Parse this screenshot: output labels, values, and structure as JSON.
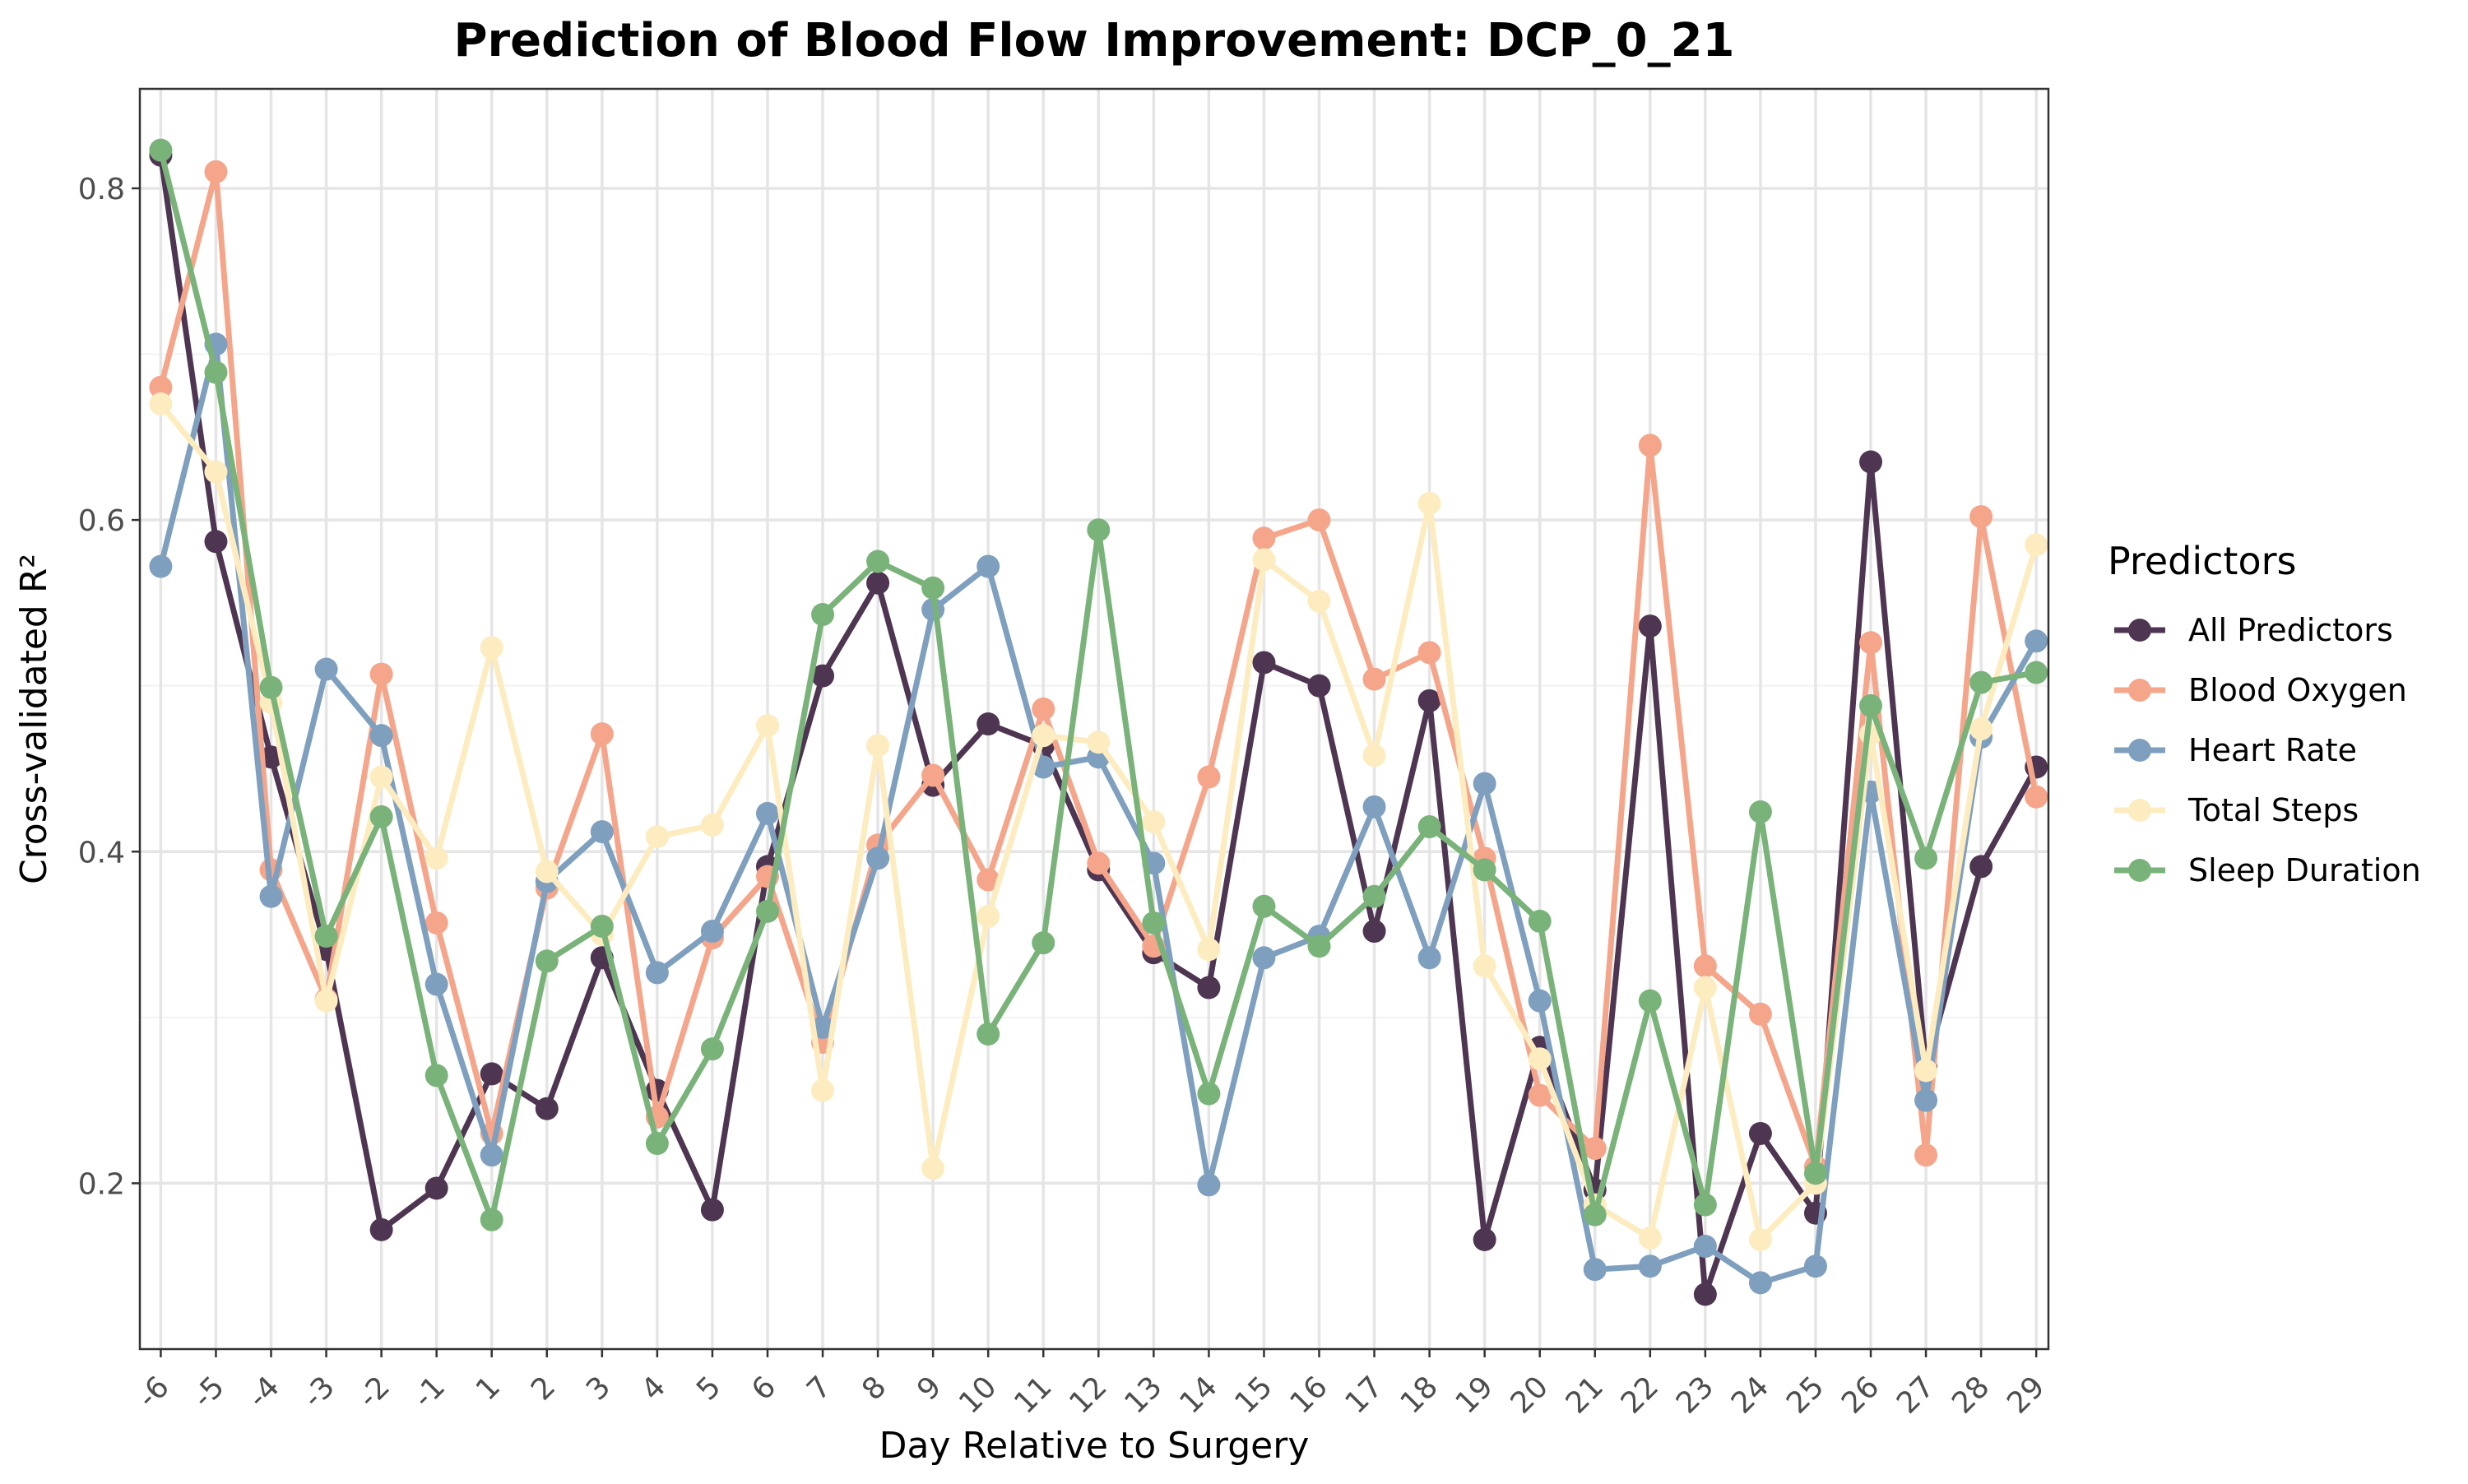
{
  "chart_data": {
    "type": "line",
    "title": "Prediction of Blood Flow Improvement: DCP_0_21",
    "xlabel": "Day Relative to Surgery",
    "ylabel": "Cross-validated R²",
    "x": [
      -6,
      -5,
      -4,
      -3,
      -2,
      -1,
      1,
      2,
      3,
      4,
      5,
      6,
      7,
      8,
      9,
      10,
      11,
      12,
      13,
      14,
      15,
      16,
      17,
      18,
      19,
      20,
      21,
      22,
      23,
      24,
      25,
      26,
      27,
      28,
      29
    ],
    "x_tick_labels": [
      "-6",
      "-5",
      "-4",
      "-3",
      "-2",
      "-1",
      "1",
      "2",
      "3",
      "4",
      "5",
      "6",
      "7",
      "8",
      "9",
      "10",
      "11",
      "12",
      "13",
      "14",
      "15",
      "16",
      "17",
      "18",
      "19",
      "20",
      "21",
      "22",
      "23",
      "24",
      "25",
      "26",
      "27",
      "28",
      "29"
    ],
    "ylim": [
      0.1,
      0.86
    ],
    "y_ticks": [
      0.2,
      0.4,
      0.6,
      0.8
    ],
    "y_tick_labels": [
      "0.2",
      "0.4",
      "0.6",
      "0.8"
    ],
    "grid": true,
    "legend": {
      "title": "Predictors",
      "placement": "right"
    },
    "series": [
      {
        "name": "All Predictors",
        "color": "#4e3551",
        "values": [
          0.82,
          0.587,
          0.457,
          0.341,
          0.172,
          0.197,
          0.266,
          0.245,
          0.336,
          0.256,
          0.184,
          0.391,
          0.506,
          0.562,
          0.44,
          0.477,
          0.464,
          0.389,
          0.339,
          0.318,
          0.514,
          0.5,
          0.352,
          0.491,
          0.166,
          0.282,
          0.196,
          0.536,
          0.133,
          0.23,
          0.182,
          0.635,
          0.27,
          0.391,
          0.451
        ]
      },
      {
        "name": "Blood Oxygen",
        "color": "#f4a58a",
        "values": [
          0.68,
          0.81,
          0.389,
          0.311,
          0.507,
          0.357,
          0.23,
          0.378,
          0.471,
          0.24,
          0.348,
          0.385,
          0.285,
          0.404,
          0.446,
          0.383,
          0.486,
          0.393,
          0.343,
          0.445,
          0.589,
          0.6,
          0.504,
          0.52,
          0.396,
          0.253,
          0.221,
          0.645,
          0.331,
          0.302,
          0.21,
          0.526,
          0.217,
          0.602,
          0.433
        ]
      },
      {
        "name": "Heart Rate",
        "color": "#7f9fbf",
        "values": [
          0.572,
          0.706,
          0.373,
          0.51,
          0.47,
          0.32,
          0.217,
          0.382,
          0.412,
          0.327,
          0.352,
          0.423,
          0.294,
          0.396,
          0.546,
          0.572,
          0.451,
          0.457,
          0.393,
          0.199,
          0.336,
          0.349,
          0.427,
          0.336,
          0.441,
          0.31,
          0.148,
          0.15,
          0.162,
          0.14,
          0.15,
          0.436,
          0.25,
          0.469,
          0.527
        ]
      },
      {
        "name": "Total Steps",
        "color": "#fdecc0",
        "values": [
          0.67,
          0.629,
          0.49,
          0.31,
          0.445,
          0.396,
          0.523,
          0.388,
          0.35,
          0.409,
          0.416,
          0.476,
          0.256,
          0.464,
          0.209,
          0.361,
          0.47,
          0.466,
          0.418,
          0.341,
          0.576,
          0.551,
          0.458,
          0.61,
          0.331,
          0.275,
          0.187,
          0.167,
          0.318,
          0.166,
          0.2,
          0.471,
          0.268,
          0.474,
          0.585
        ]
      },
      {
        "name": "Sleep Duration",
        "color": "#7ab37a",
        "values": [
          0.823,
          0.689,
          0.499,
          0.349,
          0.421,
          0.265,
          0.178,
          0.334,
          0.355,
          0.224,
          0.281,
          0.364,
          0.543,
          0.575,
          0.559,
          0.29,
          0.345,
          0.594,
          0.357,
          0.254,
          0.367,
          0.343,
          0.373,
          0.415,
          0.389,
          0.358,
          0.181,
          0.31,
          0.187,
          0.424,
          0.206,
          0.488,
          0.396,
          0.502,
          0.508
        ]
      }
    ]
  }
}
